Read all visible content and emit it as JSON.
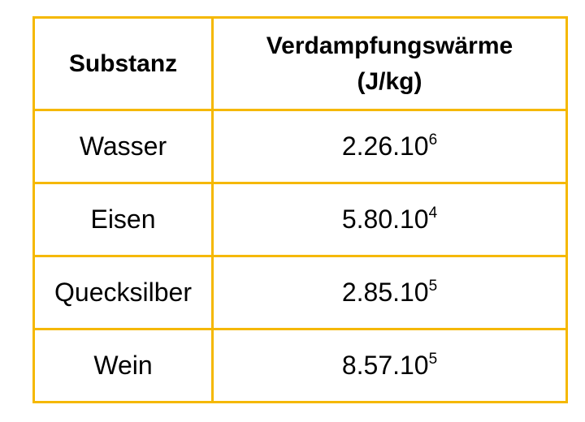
{
  "table": {
    "header": {
      "col1": "Substanz",
      "col2_line1": "Verdampfungswärme",
      "col2_line2": "(J/kg)"
    },
    "rows": [
      {
        "substance": "Wasser",
        "mantissa": "2.26.10",
        "exponent": "6"
      },
      {
        "substance": "Eisen",
        "mantissa": "5.80.10",
        "exponent": "4"
      },
      {
        "substance": "Quecksilber",
        "mantissa": "2.85.10",
        "exponent": "5"
      },
      {
        "substance": "Wein",
        "mantissa": "8.57.10",
        "exponent": "5"
      }
    ],
    "border_color": "#f5b800"
  }
}
